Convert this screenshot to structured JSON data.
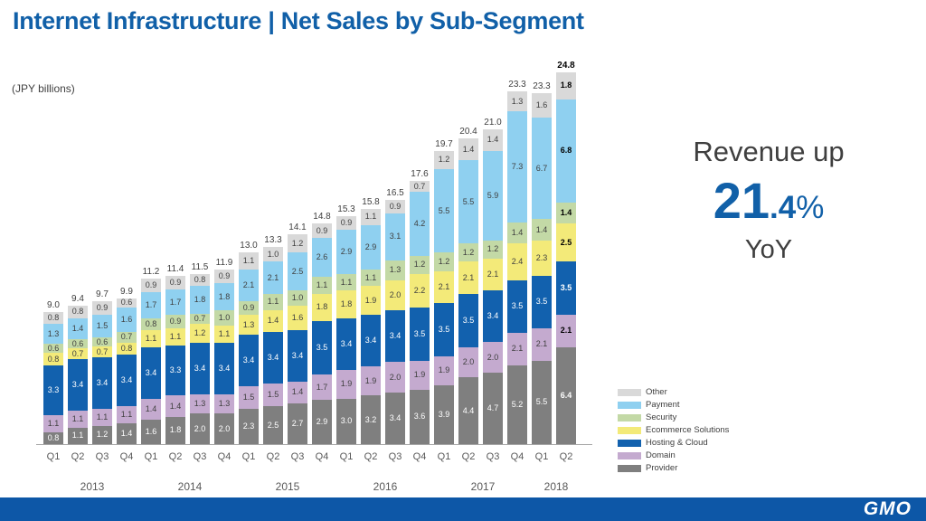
{
  "slide": {
    "title": "Internet Infrastructure | Net Sales by Sub-Segment",
    "unit_label": "(JPY billions)",
    "highlight": {
      "line1": "Revenue up",
      "value_main": "21",
      "value_decimal": ".4",
      "percent_sign": "%",
      "line3": "YoY"
    },
    "footer_logo": "GMO"
  },
  "colors": {
    "title_blue": "#1160a8",
    "accent_blue": "#1160a8",
    "footer_blue": "#0d57a7",
    "axis_gray": "#a6a6a6",
    "label_dark": "#3f3f3f",
    "tick_gray": "#595959"
  },
  "chart_data": {
    "type": "bar",
    "stacked": true,
    "title": "Internet Infrastructure | Net Sales by Sub-Segment",
    "ylabel": "(JPY billions)",
    "xlabel": "",
    "ylim": [
      0,
      26
    ],
    "grid": false,
    "legend_position": "right-bottom",
    "quarters": [
      "Q1",
      "Q2",
      "Q3",
      "Q4",
      "Q1",
      "Q2",
      "Q3",
      "Q4",
      "Q1",
      "Q2",
      "Q3",
      "Q4",
      "Q1",
      "Q2",
      "Q3",
      "Q4",
      "Q1",
      "Q2",
      "Q3",
      "Q4",
      "Q1",
      "Q2"
    ],
    "years": [
      {
        "label": "2013",
        "span": 4
      },
      {
        "label": "2014",
        "span": 4
      },
      {
        "label": "2015",
        "span": 4
      },
      {
        "label": "2016",
        "span": 4
      },
      {
        "label": "2017",
        "span": 4
      },
      {
        "label": "2018",
        "span": 2
      }
    ],
    "totals": [
      9.0,
      9.4,
      9.7,
      9.9,
      11.2,
      11.4,
      11.5,
      11.9,
      13.0,
      13.3,
      14.1,
      14.8,
      15.3,
      15.8,
      16.5,
      17.6,
      19.7,
      20.4,
      21.0,
      23.3,
      23.3,
      24.8
    ],
    "series_bottom_up": [
      {
        "name": "Provider",
        "color": "#7f7f7f",
        "label_color": "#ffffff",
        "values": [
          0.8,
          1.1,
          1.2,
          1.4,
          1.6,
          1.8,
          2.0,
          2.0,
          2.3,
          2.5,
          2.7,
          2.9,
          3.0,
          3.2,
          3.4,
          3.6,
          3.9,
          4.4,
          4.7,
          5.2,
          5.5,
          6.4
        ]
      },
      {
        "name": "Domain",
        "color": "#c4aacf",
        "label_color": "#3f3f3f",
        "values": [
          1.1,
          1.1,
          1.1,
          1.1,
          1.4,
          1.4,
          1.3,
          1.3,
          1.5,
          1.5,
          1.4,
          1.7,
          1.9,
          1.9,
          2.0,
          1.9,
          1.9,
          2.0,
          2.0,
          2.1,
          2.1,
          2.1
        ]
      },
      {
        "name": "Hosting & Cloud",
        "color": "#1261ae",
        "label_color": "#ffffff",
        "values": [
          3.3,
          3.4,
          3.4,
          3.4,
          3.4,
          3.3,
          3.4,
          3.4,
          3.4,
          3.4,
          3.4,
          3.5,
          3.4,
          3.4,
          3.4,
          3.5,
          3.5,
          3.5,
          3.4,
          3.5,
          3.5,
          3.5
        ]
      },
      {
        "name": "Ecommerce Solutions",
        "color": "#f3ea79",
        "label_color": "#3f3f3f",
        "values": [
          0.8,
          0.7,
          0.7,
          0.8,
          1.1,
          1.1,
          1.2,
          1.1,
          1.3,
          1.4,
          1.6,
          1.8,
          1.8,
          1.9,
          2.0,
          2.2,
          2.1,
          2.1,
          2.1,
          2.4,
          2.3,
          2.5
        ]
      },
      {
        "name": "Security",
        "color": "#c3d9a6",
        "label_color": "#3f3f3f",
        "values": [
          0.6,
          0.6,
          0.6,
          0.7,
          0.8,
          0.9,
          0.7,
          1.0,
          0.9,
          1.1,
          1.0,
          1.1,
          1.1,
          1.1,
          1.3,
          1.2,
          1.2,
          1.2,
          1.2,
          1.4,
          1.4,
          1.4
        ]
      },
      {
        "name": "Payment",
        "color": "#8fd0f0",
        "label_color": "#3f3f3f",
        "values": [
          1.3,
          1.4,
          1.5,
          1.6,
          1.7,
          1.7,
          1.8,
          1.8,
          2.1,
          2.1,
          2.5,
          2.6,
          2.9,
          2.9,
          3.1,
          4.2,
          5.5,
          5.5,
          5.9,
          7.3,
          6.7,
          6.8
        ]
      },
      {
        "name": "Other",
        "color": "#d9d9d9",
        "label_color": "#3f3f3f",
        "values": [
          0.8,
          0.8,
          0.9,
          0.6,
          0.9,
          0.9,
          0.8,
          0.9,
          1.1,
          1.0,
          1.2,
          0.9,
          0.9,
          1.1,
          0.9,
          0.7,
          1.2,
          1.4,
          1.4,
          1.3,
          1.6,
          1.8
        ]
      }
    ],
    "legend_top_down": [
      "Other",
      "Payment",
      "Security",
      "Ecommerce Solutions",
      "Hosting & Cloud",
      "Domain",
      "Provider"
    ]
  }
}
